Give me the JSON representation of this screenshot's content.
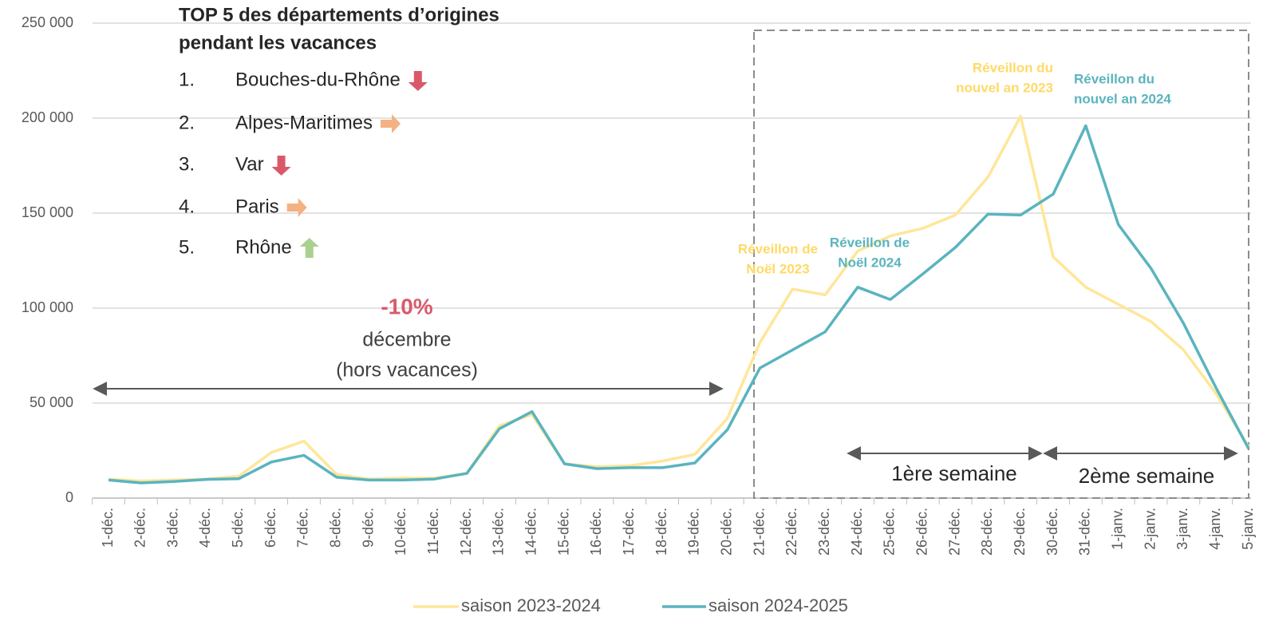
{
  "chart_data": {
    "type": "line",
    "title": [
      "TOP 5 des départements d’origines",
      "pendant les vacances"
    ],
    "top5": [
      {
        "rank": "1.",
        "name": "Bouches-du-Rhône",
        "arrow": "down",
        "color": "#d9596b"
      },
      {
        "rank": "2.",
        "name": "Alpes-Maritimes",
        "arrow": "right",
        "color": "#f4b183"
      },
      {
        "rank": "3.",
        "name": "Var",
        "arrow": "down",
        "color": "#d9596b"
      },
      {
        "rank": "4.",
        "name": "Paris",
        "arrow": "right",
        "color": "#f4b183"
      },
      {
        "rank": "5.",
        "name": "Rhône",
        "arrow": "up",
        "color": "#a9d18e"
      }
    ],
    "december_note": {
      "change": "-10%",
      "lines": [
        "décembre",
        "(hors vacances)"
      ]
    },
    "week_labels": [
      "1ère semaine",
      "2ème semaine"
    ],
    "annotations": [
      {
        "lines": [
          "Réveillon de",
          "Noël 2023"
        ],
        "color": "#ffd966"
      },
      {
        "lines": [
          "Réveillon de",
          "Noël 2024"
        ],
        "color": "#5ab4bf"
      },
      {
        "lines": [
          "Réveillon du",
          "nouvel an 2023"
        ],
        "color": "#ffd966"
      },
      {
        "lines": [
          "Réveillon du",
          "nouvel an 2024"
        ],
        "color": "#5ab4bf"
      }
    ],
    "categories": [
      "1-déc.",
      "2-déc.",
      "3-déc.",
      "4-déc.",
      "5-déc.",
      "6-déc.",
      "7-déc.",
      "8-déc.",
      "9-déc.",
      "10-déc.",
      "11-déc.",
      "12-déc.",
      "13-déc.",
      "14-déc.",
      "15-déc.",
      "16-déc.",
      "17-déc.",
      "18-déc.",
      "19-déc.",
      "20-déc.",
      "21-déc.",
      "22-déc.",
      "23-déc.",
      "24-déc.",
      "25-déc.",
      "26-déc.",
      "27-déc.",
      "28-déc.",
      "29-déc.",
      "30-déc.",
      "31-déc.",
      "1-janv.",
      "2-janv.",
      "3-janv.",
      "4-janv.",
      "5-janv."
    ],
    "series": [
      {
        "name": "saison 2023-2024",
        "color": "#ffe699",
        "values": [
          10000,
          9000,
          9500,
          10000,
          11500,
          24000,
          30000,
          12500,
          10000,
          10500,
          10500,
          13000,
          38000,
          44000,
          18000,
          16500,
          17000,
          19500,
          23000,
          42000,
          82000,
          110000,
          107000,
          130000,
          138000,
          142000,
          149000,
          169000,
          201000,
          127000,
          111000,
          102000,
          93000,
          78000,
          55000,
          27000
        ]
      },
      {
        "name": "saison 2024-2025",
        "color": "#5ab4bf",
        "values": [
          9500,
          8000,
          8700,
          9800,
          10200,
          19000,
          22500,
          11000,
          9500,
          9500,
          10000,
          13000,
          36500,
          45500,
          18000,
          15500,
          16000,
          16000,
          18500,
          36000,
          68500,
          78000,
          87500,
          111000,
          104500,
          118000,
          132000,
          149500,
          149000,
          160000,
          196000,
          144000,
          121000,
          92000,
          58000,
          26000
        ]
      }
    ],
    "ylim": [
      0,
      250000
    ],
    "yticks": [
      0,
      {
        "value": 50000,
        "label": "50 000"
      },
      {
        "value": 100000,
        "label": "100 000"
      },
      {
        "value": 150000,
        "label": "150 000"
      },
      {
        "value": 200000,
        "label": "200 000"
      },
      {
        "value": 250000,
        "label": "250 000"
      }
    ],
    "grid": true
  }
}
